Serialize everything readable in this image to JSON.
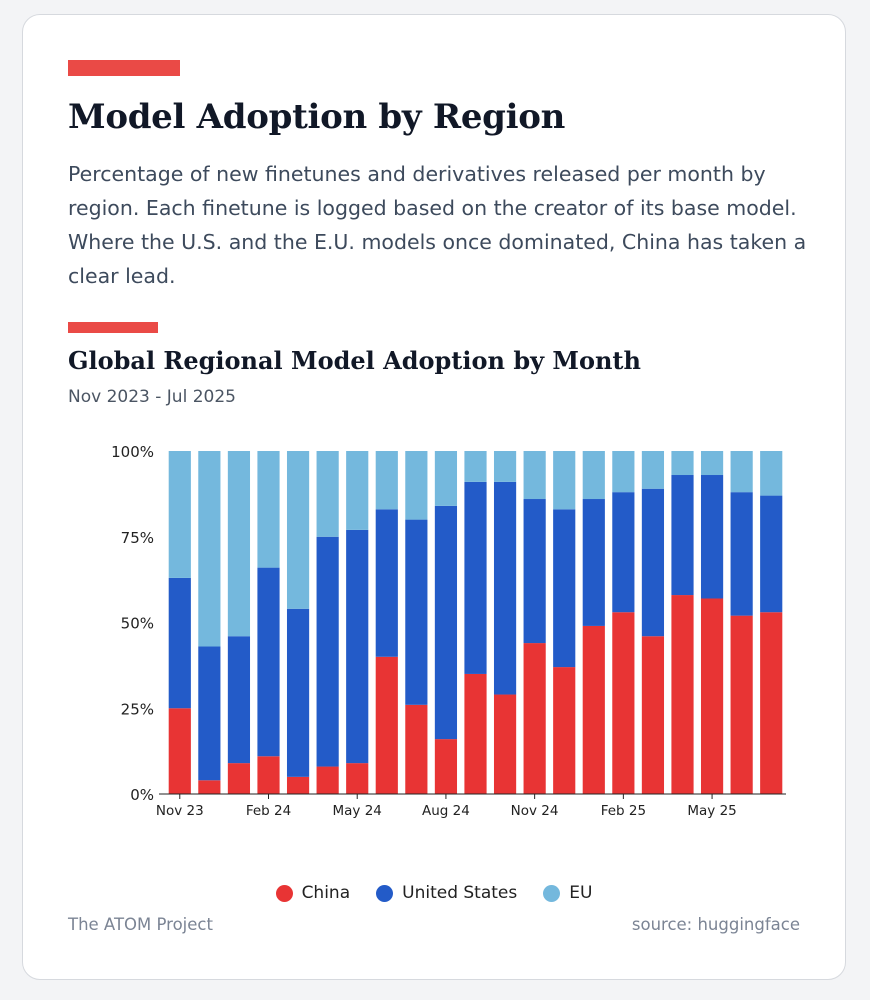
{
  "header": {
    "title": "Model Adoption by Region",
    "description": "Percentage of new finetunes and derivatives released per month by region. Each finetune is logged based on the creator of its base model. Where the U.S. and the E.U. models once dominated, China has taken a clear lead."
  },
  "colors": {
    "accent": "#ea4a46",
    "china": "#e83434",
    "us": "#235bc8",
    "eu": "#74b8dd"
  },
  "chart_data": {
    "type": "bar",
    "stacked": true,
    "title": "Global Regional Model Adoption by Month",
    "subtitle": "Nov 2023 - Jul 2025",
    "xlabel": "",
    "ylabel": "",
    "ylim": [
      0,
      100
    ],
    "yticks": [
      0,
      25,
      50,
      75,
      100
    ],
    "ytick_labels": [
      "0%",
      "25%",
      "50%",
      "75%",
      "100%"
    ],
    "categories": [
      "Nov 23",
      "Dec 23",
      "Jan 24",
      "Feb 24",
      "Mar 24",
      "Apr 24",
      "May 24",
      "Jun 24",
      "Jul 24",
      "Aug 24",
      "Sep 24",
      "Oct 24",
      "Nov 24",
      "Dec 24",
      "Jan 25",
      "Feb 25",
      "Mar 25",
      "Apr 25",
      "May 25",
      "Jun 25",
      "Jul 25"
    ],
    "xtick_labels": [
      {
        "index": 0,
        "label": "Nov 23"
      },
      {
        "index": 3,
        "label": "Feb 24"
      },
      {
        "index": 6,
        "label": "May 24"
      },
      {
        "index": 9,
        "label": "Aug 24"
      },
      {
        "index": 12,
        "label": "Nov 24"
      },
      {
        "index": 15,
        "label": "Feb 25"
      },
      {
        "index": 18,
        "label": "May 25"
      }
    ],
    "series": [
      {
        "name": "China",
        "values": [
          25,
          4,
          9,
          11,
          5,
          8,
          9,
          40,
          26,
          16,
          35,
          29,
          44,
          37,
          49,
          53,
          46,
          58,
          57,
          52,
          53
        ]
      },
      {
        "name": "United States",
        "values": [
          38,
          39,
          37,
          55,
          49,
          67,
          68,
          43,
          54,
          68,
          56,
          62,
          42,
          46,
          37,
          35,
          43,
          35,
          36,
          36,
          34
        ]
      },
      {
        "name": "EU",
        "values": [
          37,
          57,
          54,
          34,
          46,
          25,
          23,
          17,
          20,
          16,
          9,
          9,
          14,
          17,
          14,
          12,
          11,
          7,
          7,
          12,
          13
        ]
      }
    ],
    "legend_position": "bottom-center"
  },
  "footer": {
    "left": "The ATOM Project",
    "right": "source: huggingface"
  }
}
